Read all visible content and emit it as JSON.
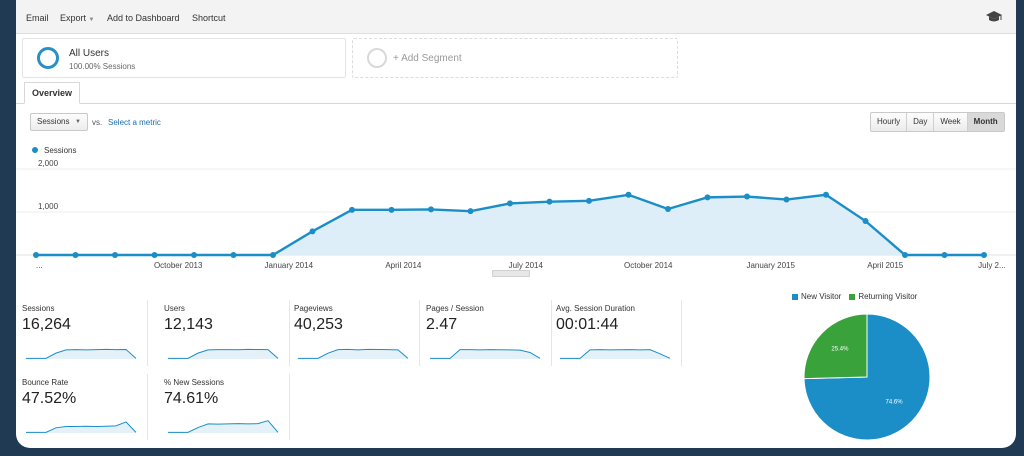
{
  "toolbar": {
    "email": "Email",
    "export": "Export",
    "add_to_dashboard": "Add to Dashboard",
    "shortcut": "Shortcut",
    "cap_icon": "graduation-cap-icon"
  },
  "segments": {
    "all_users": {
      "title": "All Users",
      "subtitle": "100.00% Sessions"
    },
    "add_segment": "+ Add Segment"
  },
  "tabs": {
    "overview": "Overview"
  },
  "metric_controls": {
    "selected": "Sessions",
    "vs": "vs.",
    "select_metric": "Select a metric"
  },
  "granularity": [
    {
      "label": "Hourly",
      "active": false
    },
    {
      "label": "Day",
      "active": false
    },
    {
      "label": "Week",
      "active": false
    },
    {
      "label": "Month",
      "active": true
    }
  ],
  "colors": {
    "line": "#1b8ec7",
    "fill": "#deeef8",
    "new_visitor": "#1b8ec7",
    "returning_visitor": "#3aa23a"
  },
  "chart_data": [
    {
      "type": "area",
      "series": [
        {
          "name": "Sessions",
          "values": [
            0,
            0,
            0,
            0,
            0,
            0,
            0,
            550,
            1050,
            1050,
            1060,
            1020,
            1200,
            1240,
            1260,
            1400,
            1070,
            1340,
            1360,
            1290,
            1400,
            790,
            0,
            0,
            0
          ]
        }
      ],
      "x_tick_labels": [
        "...",
        "October 2013",
        "January 2014",
        "April 2014",
        "July 2014",
        "October 2014",
        "January 2015",
        "April 2015",
        "July 2..."
      ],
      "y_tick_labels": [
        "2,000",
        "1,000"
      ],
      "ylim": [
        0,
        2000
      ],
      "grid": true
    },
    {
      "type": "pie",
      "legend": [
        "New Visitor",
        "Returning Visitor"
      ],
      "legend_position": "top",
      "slices": [
        {
          "name": "New Visitor",
          "value": 74.6,
          "label": "74.6%"
        },
        {
          "name": "Returning Visitor",
          "value": 25.4,
          "label": "25.4%"
        }
      ]
    }
  ],
  "metrics": [
    {
      "label": "Sessions",
      "value": "16,264"
    },
    {
      "label": "Users",
      "value": "12,143"
    },
    {
      "label": "Pageviews",
      "value": "40,253"
    },
    {
      "label": "Pages / Session",
      "value": "2.47"
    },
    {
      "label": "Avg. Session Duration",
      "value": "00:01:44"
    },
    {
      "label": "Bounce Rate",
      "value": "47.52%"
    },
    {
      "label": "% New Sessions",
      "value": "74.61%"
    }
  ]
}
